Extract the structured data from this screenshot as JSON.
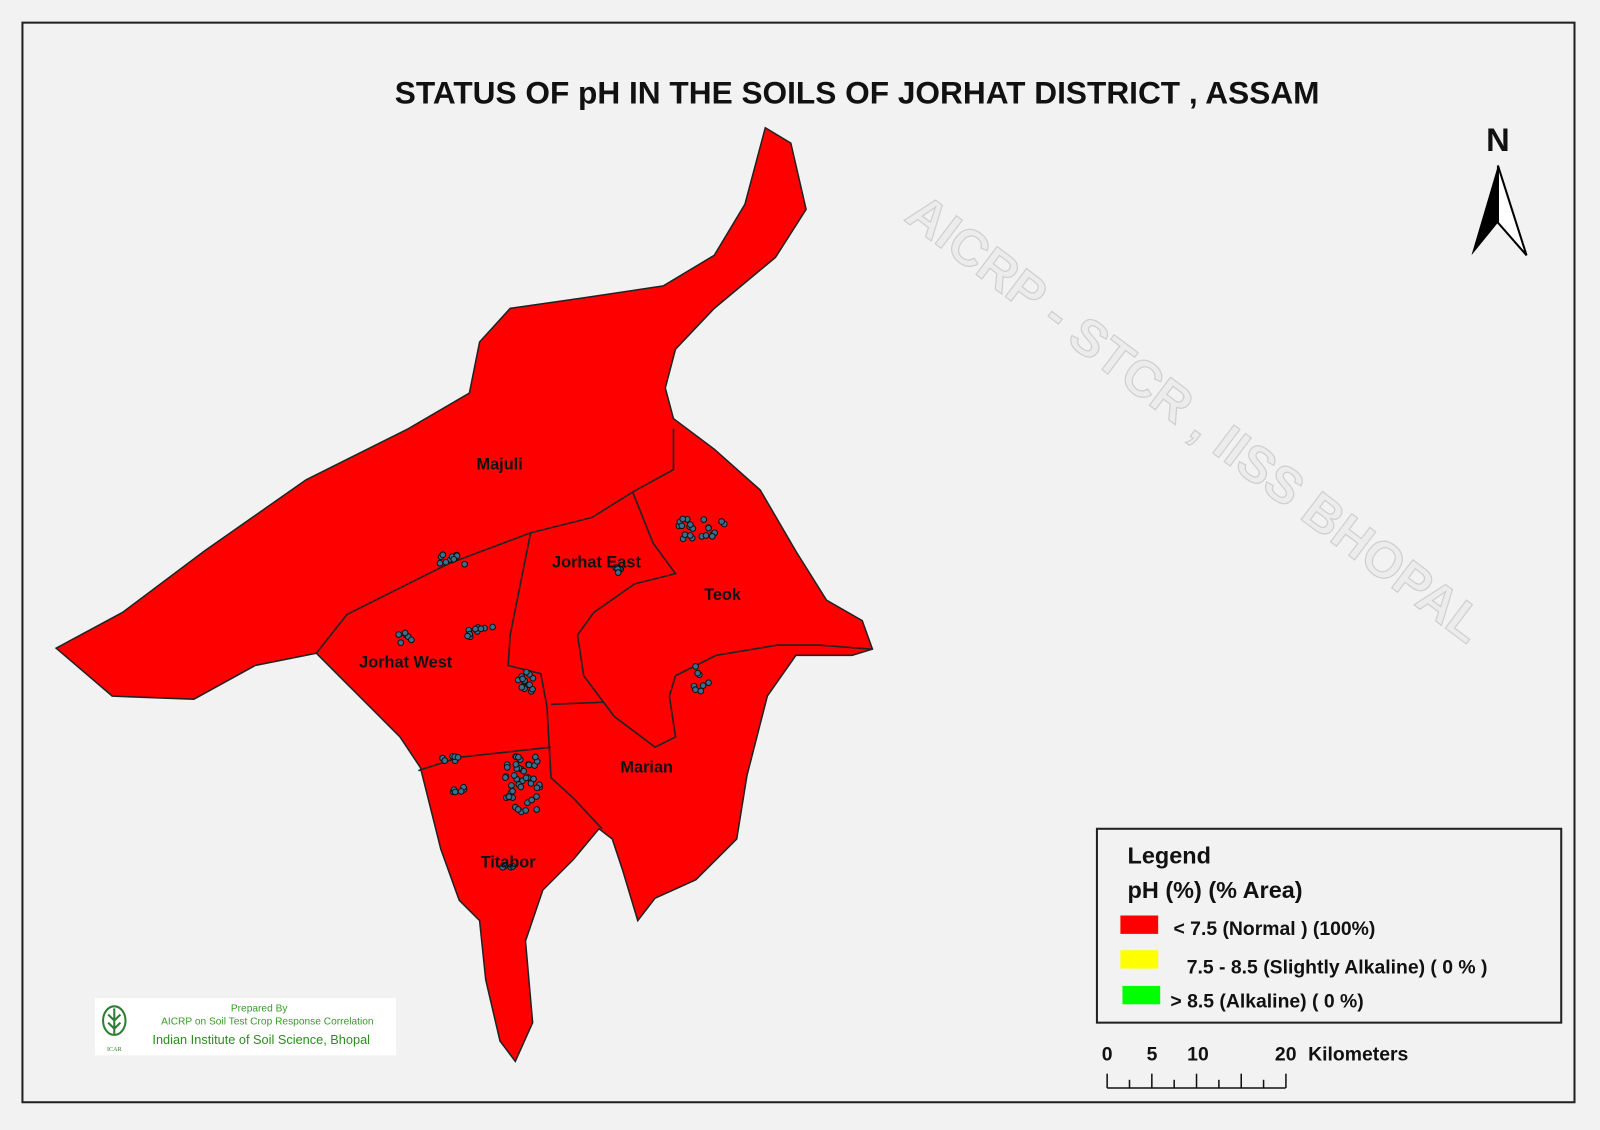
{
  "title": "STATUS OF pH  IN THE SOILS OF JORHAT  DISTRICT ,  ASSAM",
  "north_label": "N",
  "watermark": "AICRP - STCR , IISS BHOPAL",
  "districts": [
    {
      "name": "Majuli"
    },
    {
      "name": "Jorhat East"
    },
    {
      "name": "Teok"
    },
    {
      "name": "Jorhat West"
    },
    {
      "name": "Marian"
    },
    {
      "name": "Titabor"
    }
  ],
  "map_fill_color": "#ff0000",
  "sample_point_color": "#3a6f8f",
  "legend": {
    "title": "Legend",
    "subtitle": "pH  (%) (% Area)",
    "items": [
      {
        "label": "< 7.5 (Normal ) (100%)",
        "color": "#ff0000",
        "percent": 100
      },
      {
        "label": "7.5 -  8.5 (Slightly Alkaline)  ( 0 % )",
        "color": "#ffff00",
        "percent": 0
      },
      {
        "label": "> 8.5  (Alkaline) (  0 %)",
        "color": "#00ff00",
        "percent": 0
      }
    ]
  },
  "scale_bar": {
    "ticks": [
      "0",
      "5",
      "10",
      "20"
    ],
    "unit": "Kilometers"
  },
  "credit": {
    "line1": "Prepared By",
    "line2": "AICRP on Soil Test Crop Response Correlation",
    "line3": "Indian Institute of Soil Science, Bhopal",
    "logo_text": "ICAR"
  }
}
